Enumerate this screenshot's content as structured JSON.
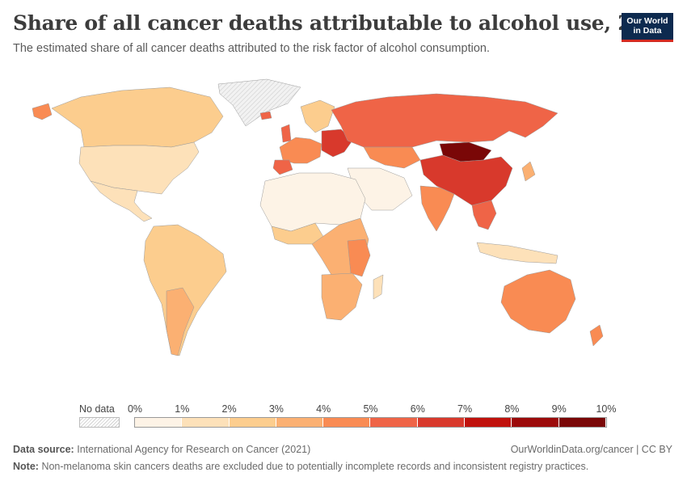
{
  "header": {
    "title": "Share of all cancer deaths attributable to alcohol use, 2020",
    "subtitle": "The estimated share of all cancer deaths attributed to the risk factor of alcohol consumption."
  },
  "logo": {
    "line1": "Our World",
    "line2": "in Data"
  },
  "legend": {
    "no_data_label": "No data",
    "ticks": [
      "0%",
      "1%",
      "2%",
      "3%",
      "4%",
      "5%",
      "6%",
      "7%",
      "8%",
      "9%",
      "10%"
    ],
    "colors": [
      "#fdf3e6",
      "#fde1b9",
      "#fccd8e",
      "#fbb072",
      "#f98b53",
      "#ef6447",
      "#d8392c",
      "#c0110c",
      "#9c0a0a",
      "#7a0707"
    ]
  },
  "footer": {
    "source_label": "Data source:",
    "source_text": "International Agency for Research on Cancer (2021)",
    "note_label": "Note:",
    "note_text": "Non-melanoma skin cancers deaths are excluded due to potentially incomplete records and inconsistent registry practices.",
    "url": "OurWorldinData.org/cancer | CC BY"
  },
  "map_colors": {
    "no_data": "#ececec",
    "c0": "#fdf3e6",
    "c1": "#fde1b9",
    "c2": "#fccd8e",
    "c3": "#fbb072",
    "c4": "#f98b53",
    "c5": "#ef6447",
    "c6": "#d8392c",
    "c9": "#7a0707"
  }
}
